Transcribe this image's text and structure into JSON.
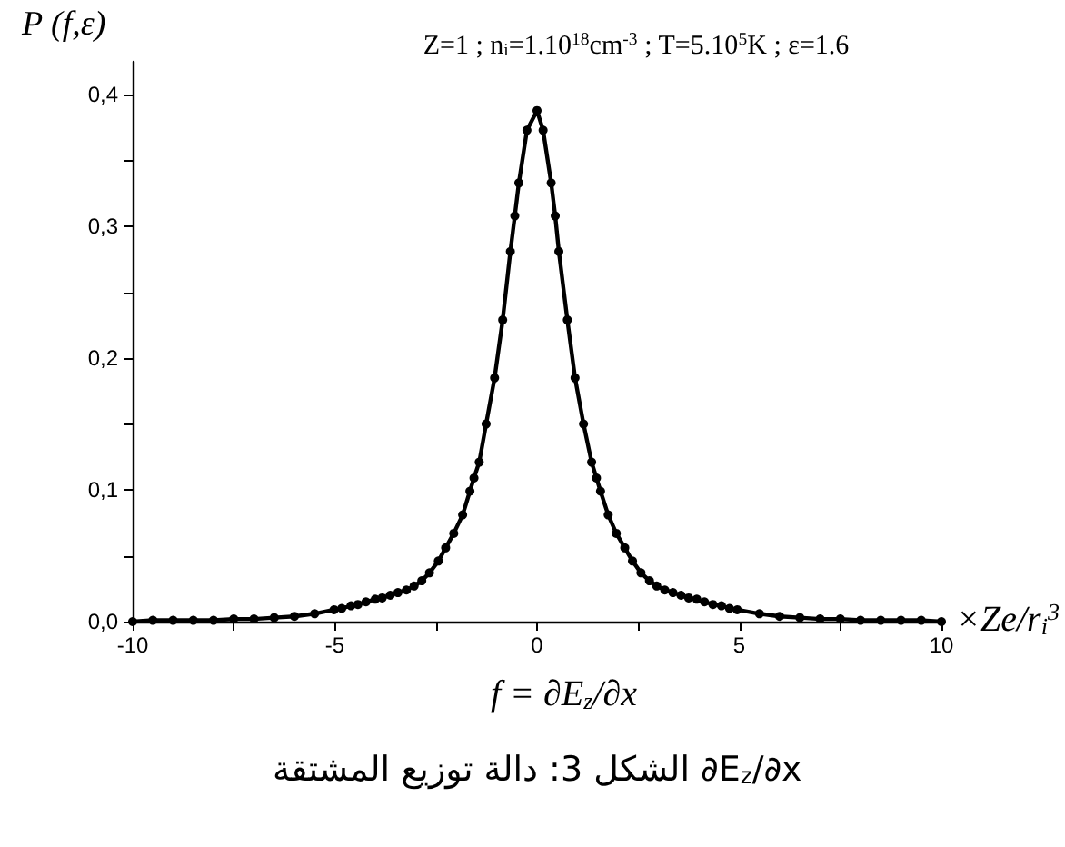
{
  "chart_data": {
    "type": "line",
    "title": "Z=1 ; n$_{i}$=1.10$^{18}$cm$^{-3}$ ; T=5.10$^{5}$K ; ε=1.6",
    "xlabel": "f = ∂E$_{z}$/∂x",
    "ylabel": "P (f,ε)",
    "annotations": [
      "×Ze/r$_{i}$$^{3}$",
      "الشكل 3: دالة توزيع المشتقة ∂E$_{z}$/∂x"
    ],
    "x": [
      -10,
      -9.5,
      -9,
      -8.5,
      -8,
      -7.5,
      -7,
      -6.5,
      -6,
      -5.5,
      -5.02,
      -4.83,
      -4.6,
      -4.43,
      -4.23,
      -4,
      -3.83,
      -3.63,
      -3.44,
      -3.23,
      -3.04,
      -2.85,
      -2.66,
      -2.44,
      -2.26,
      -2.06,
      -1.84,
      -1.66,
      -1.56,
      -1.43,
      -1.26,
      -1.05,
      -0.85,
      -0.66,
      -0.55,
      -0.45,
      -0.25,
      0,
      0.15,
      0.35,
      0.45,
      0.54,
      0.75,
      0.94,
      1.15,
      1.35,
      1.47,
      1.57,
      1.76,
      1.96,
      2.17,
      2.36,
      2.57,
      2.78,
      2.96,
      3.16,
      3.36,
      3.56,
      3.75,
      3.95,
      4.14,
      4.35,
      4.56,
      4.76,
      4.95,
      5.5,
      6,
      6.5,
      7,
      7.5,
      8,
      8.5,
      9,
      9.5,
      10
    ],
    "series": [
      {
        "color": "#000000",
        "values": [
          0.0,
          0.001,
          0.001,
          0.001,
          0.001,
          0.002,
          0.002,
          0.003,
          0.004,
          0.006,
          0.009,
          0.01,
          0.012,
          0.013,
          0.015,
          0.017,
          0.018,
          0.02,
          0.022,
          0.024,
          0.027,
          0.031,
          0.037,
          0.046,
          0.056,
          0.067,
          0.081,
          0.099,
          0.109,
          0.121,
          0.15,
          0.185,
          0.229,
          0.281,
          0.308,
          0.333,
          0.373,
          0.388,
          0.373,
          0.333,
          0.308,
          0.281,
          0.229,
          0.185,
          0.15,
          0.121,
          0.109,
          0.099,
          0.081,
          0.067,
          0.056,
          0.046,
          0.037,
          0.031,
          0.027,
          0.024,
          0.022,
          0.02,
          0.018,
          0.017,
          0.015,
          0.013,
          0.012,
          0.01,
          0.009,
          0.006,
          0.004,
          0.003,
          0.002,
          0.002,
          0.001,
          0.001,
          0.001,
          0.001,
          0.0
        ]
      }
    ],
    "xlim": [
      -10,
      10
    ],
    "xticks": [
      -10,
      {
        "value": -7.5,
        "label": null
      },
      -5,
      {
        "value": -2.5,
        "label": null
      },
      0,
      {
        "value": 2.5,
        "label": null
      },
      5,
      {
        "value": 7.5,
        "label": null
      },
      10
    ],
    "ylim": [
      0,
      0.425
    ],
    "yticks": [
      {
        "value": 0,
        "label": "0,0"
      },
      {
        "value": 0.05,
        "label": null
      },
      {
        "value": 0.1,
        "label": "0,1"
      },
      {
        "value": 0.15,
        "label": null
      },
      {
        "value": 0.2,
        "label": "0,2"
      },
      {
        "value": 0.25,
        "label": null
      },
      {
        "value": 0.3,
        "label": "0,3"
      },
      {
        "value": 0.35,
        "label": null
      },
      {
        "value": 0.4,
        "label": "0,4"
      }
    ],
    "grid": false,
    "marker": "circle",
    "line_style": "solid"
  }
}
